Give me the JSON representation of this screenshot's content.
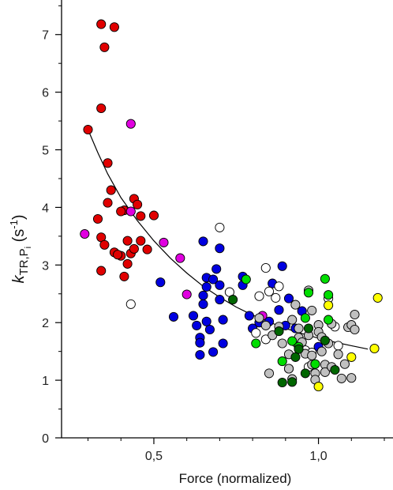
{
  "chart_data": {
    "type": "scatter",
    "title": "",
    "xlabel": "Force (normalized)",
    "ylabel_parts": {
      "k": "k",
      "sub": "TR,P",
      "subsub": "i",
      "unit_open": " (s",
      "sup": "-1",
      "unit_close": ")"
    },
    "xlim": [
      0.27,
      1.2
    ],
    "ylim": [
      0,
      7.6
    ],
    "x_ticks": [
      0.5,
      1.0
    ],
    "x_tick_labels": [
      "0,5",
      "1,0"
    ],
    "x_minor_step": 0.1,
    "y_ticks": [
      0,
      1,
      2,
      3,
      4,
      5,
      6,
      7
    ],
    "y_tick_labels": [
      "0",
      "1",
      "2",
      "3",
      "4",
      "5",
      "6",
      "7"
    ],
    "y_minor_step": 0.5,
    "grid": false,
    "fit_curve": [
      [
        0.3,
        5.35
      ],
      [
        0.33,
        4.95
      ],
      [
        0.36,
        4.58
      ],
      [
        0.4,
        4.17
      ],
      [
        0.45,
        3.77
      ],
      [
        0.5,
        3.42
      ],
      [
        0.55,
        3.12
      ],
      [
        0.6,
        2.86
      ],
      [
        0.65,
        2.63
      ],
      [
        0.7,
        2.44
      ],
      [
        0.75,
        2.27
      ],
      [
        0.8,
        2.13
      ],
      [
        0.85,
        2.01
      ],
      [
        0.9,
        1.9
      ],
      [
        0.95,
        1.81
      ],
      [
        1.0,
        1.73
      ],
      [
        1.05,
        1.66
      ],
      [
        1.1,
        1.6
      ],
      [
        1.15,
        1.54
      ]
    ],
    "series": [
      {
        "color": "#e00000",
        "points": [
          [
            0.34,
            7.18
          ],
          [
            0.38,
            7.13
          ],
          [
            0.35,
            6.78
          ],
          [
            0.34,
            5.72
          ],
          [
            0.3,
            5.35
          ],
          [
            0.36,
            4.77
          ],
          [
            0.37,
            4.3
          ],
          [
            0.36,
            4.08
          ],
          [
            0.44,
            4.15
          ],
          [
            0.45,
            4.05
          ],
          [
            0.41,
            3.95
          ],
          [
            0.4,
            3.93
          ],
          [
            0.33,
            3.8
          ],
          [
            0.46,
            3.85
          ],
          [
            0.5,
            3.86
          ],
          [
            0.34,
            3.48
          ],
          [
            0.35,
            3.35
          ],
          [
            0.42,
            3.42
          ],
          [
            0.46,
            3.42
          ],
          [
            0.38,
            3.22
          ],
          [
            0.4,
            3.16
          ],
          [
            0.43,
            3.2
          ],
          [
            0.44,
            3.28
          ],
          [
            0.48,
            3.27
          ],
          [
            0.42,
            3.02
          ],
          [
            0.41,
            2.8
          ],
          [
            0.34,
            2.9
          ],
          [
            0.39,
            3.18
          ]
        ]
      },
      {
        "color": "#e000e0",
        "points": [
          [
            0.43,
            5.45
          ],
          [
            0.29,
            3.54
          ],
          [
            0.43,
            3.93
          ],
          [
            0.53,
            3.39
          ],
          [
            0.58,
            3.12
          ],
          [
            0.6,
            2.49
          ],
          [
            0.83,
            2.12
          ]
        ]
      },
      {
        "color": "#0000e0",
        "points": [
          [
            0.52,
            2.7
          ],
          [
            0.56,
            2.1
          ],
          [
            0.62,
            2.12
          ],
          [
            0.63,
            1.95
          ],
          [
            0.64,
            1.74
          ],
          [
            0.64,
            1.65
          ],
          [
            0.64,
            1.44
          ],
          [
            0.65,
            3.41
          ],
          [
            0.65,
            2.47
          ],
          [
            0.65,
            2.32
          ],
          [
            0.66,
            2.62
          ],
          [
            0.66,
            2.78
          ],
          [
            0.66,
            2.02
          ],
          [
            0.67,
            1.88
          ],
          [
            0.68,
            1.49
          ],
          [
            0.68,
            2.75
          ],
          [
            0.69,
            2.93
          ],
          [
            0.7,
            3.29
          ],
          [
            0.7,
            2.65
          ],
          [
            0.7,
            2.4
          ],
          [
            0.71,
            2.05
          ],
          [
            0.71,
            1.64
          ],
          [
            0.77,
            2.8
          ],
          [
            0.77,
            2.65
          ],
          [
            0.79,
            2.12
          ],
          [
            0.8,
            1.9
          ],
          [
            0.82,
            2.0
          ],
          [
            0.85,
            2.02
          ],
          [
            0.86,
            2.68
          ],
          [
            0.88,
            2.22
          ],
          [
            0.89,
            2.98
          ],
          [
            0.9,
            1.95
          ],
          [
            0.91,
            2.42
          ],
          [
            0.93,
            1.9
          ],
          [
            0.95,
            2.2
          ],
          [
            1.0,
            1.58
          ]
        ]
      },
      {
        "color": "#ffffff",
        "points": [
          [
            0.43,
            2.32
          ],
          [
            0.7,
            3.65
          ],
          [
            0.73,
            2.53
          ],
          [
            0.82,
            2.46
          ],
          [
            0.84,
            2.95
          ],
          [
            0.85,
            2.54
          ],
          [
            0.88,
            2.63
          ],
          [
            0.87,
            2.43
          ],
          [
            0.81,
            1.82
          ],
          [
            0.84,
            1.71
          ],
          [
            0.91,
            1.2
          ],
          [
            0.93,
            1.66
          ],
          [
            0.96,
            1.52
          ],
          [
            0.97,
            1.23
          ],
          [
            0.98,
            1.48
          ],
          [
            1.03,
            2.42
          ],
          [
            1.05,
            1.93
          ],
          [
            1.06,
            1.6
          ]
        ]
      },
      {
        "color": "#c0c0c0",
        "points": [
          [
            0.82,
            2.08
          ],
          [
            0.84,
            1.95
          ],
          [
            0.86,
            1.78
          ],
          [
            0.85,
            1.12
          ],
          [
            0.88,
            1.93
          ],
          [
            0.89,
            1.64
          ],
          [
            0.91,
            1.45
          ],
          [
            0.91,
            1.2
          ],
          [
            0.92,
            1.02
          ],
          [
            0.92,
            2.05
          ],
          [
            0.93,
            2.31
          ],
          [
            0.94,
            1.9
          ],
          [
            0.94,
            1.74
          ],
          [
            0.95,
            1.66
          ],
          [
            0.96,
            1.46
          ],
          [
            0.97,
            1.78
          ],
          [
            0.97,
            2.56
          ],
          [
            0.98,
            2.21
          ],
          [
            0.98,
            1.43
          ],
          [
            0.98,
            1.27
          ],
          [
            0.99,
            1.12
          ],
          [
            0.99,
            1.01
          ],
          [
            1.0,
            1.96
          ],
          [
            1.0,
            1.84
          ],
          [
            1.01,
            1.75
          ],
          [
            1.01,
            1.5
          ],
          [
            1.02,
            1.27
          ],
          [
            1.02,
            1.14
          ],
          [
            1.03,
            1.64
          ],
          [
            1.04,
            1.98
          ],
          [
            1.04,
            1.23
          ],
          [
            1.06,
            1.45
          ],
          [
            1.07,
            1.03
          ],
          [
            1.08,
            1.28
          ],
          [
            1.09,
            1.92
          ],
          [
            1.1,
            1.96
          ],
          [
            1.11,
            1.88
          ],
          [
            1.11,
            2.14
          ],
          [
            1.1,
            1.04
          ]
        ]
      },
      {
        "color": "#00dd00",
        "points": [
          [
            0.78,
            2.75
          ],
          [
            0.81,
            1.64
          ],
          [
            0.89,
            1.33
          ],
          [
            0.92,
            1.68
          ],
          [
            0.94,
            1.58
          ],
          [
            0.96,
            2.08
          ],
          [
            0.97,
            2.52
          ],
          [
            0.99,
            1.28
          ],
          [
            1.02,
            2.76
          ],
          [
            1.03,
            2.05
          ],
          [
            1.03,
            2.48
          ]
        ]
      },
      {
        "color": "#006600",
        "points": [
          [
            0.74,
            2.4
          ],
          [
            0.88,
            1.85
          ],
          [
            0.89,
            0.96
          ],
          [
            0.92,
            0.97
          ],
          [
            0.93,
            1.4
          ],
          [
            0.94,
            1.54
          ],
          [
            0.96,
            1.12
          ],
          [
            0.97,
            1.9
          ],
          [
            1.02,
            1.69
          ],
          [
            1.05,
            1.18
          ]
        ]
      },
      {
        "color": "#ffff00",
        "points": [
          [
            1.0,
            0.89
          ],
          [
            1.03,
            2.3
          ],
          [
            1.1,
            1.4
          ],
          [
            1.17,
            1.55
          ],
          [
            1.18,
            2.43
          ]
        ]
      }
    ]
  }
}
